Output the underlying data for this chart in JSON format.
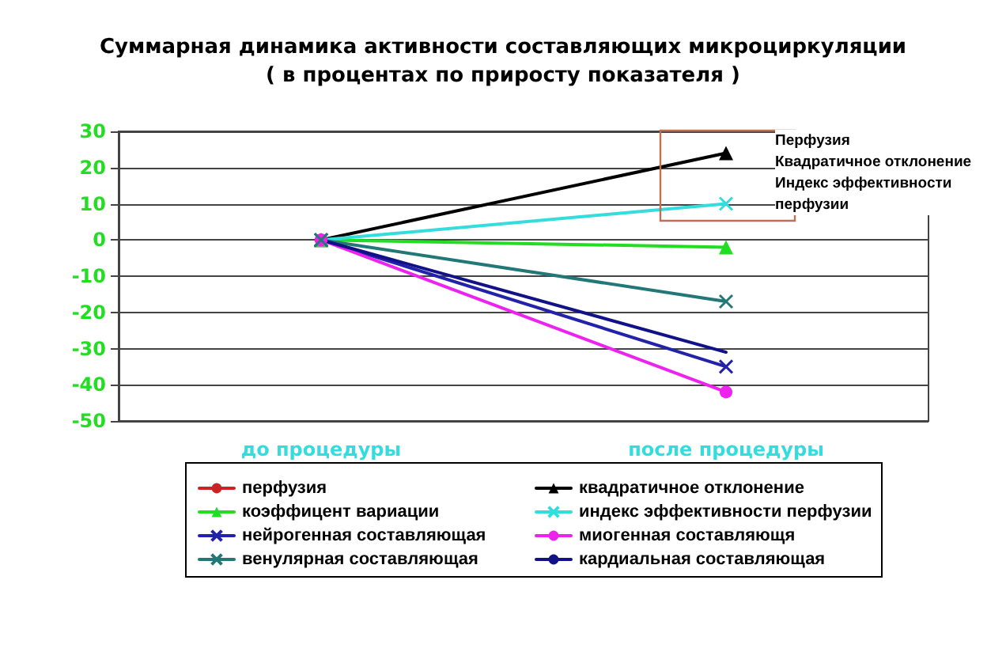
{
  "chart_data": {
    "type": "line",
    "title": "Суммарная динамика активности составляющих микроциркуляции\n( в процентах по приросту показателя )",
    "categories": [
      "до процедуры",
      "после процедуры"
    ],
    "ylim": [
      -50,
      30
    ],
    "yticks": [
      -50,
      -40,
      -30,
      -20,
      -10,
      0,
      10,
      20,
      30
    ],
    "grid": "y",
    "legend": "bottom",
    "line_style": "solid",
    "annotations": [
      "Перфузия\nКвадратичное отклонение\nИндекс эффективности\nперфузии"
    ],
    "series": [
      {
        "name": "перфузия",
        "color": "#cc2222",
        "marker": "circle",
        "values": [
          0,
          null
        ]
      },
      {
        "name": "квадратичное отклонение",
        "color": "#000000",
        "marker": "triangle",
        "values": [
          0,
          24
        ]
      },
      {
        "name": "коэффицент вариации",
        "color": "#22dd22",
        "marker": "triangle",
        "values": [
          0,
          -2
        ]
      },
      {
        "name": "индекс эффективности перфузии",
        "color": "#33dddd",
        "marker": "cross",
        "values": [
          0,
          10
        ]
      },
      {
        "name": "нейрогенная составляющая",
        "color": "#2222aa",
        "marker": "cross",
        "values": [
          0,
          -35
        ]
      },
      {
        "name": "миогенная составляющя",
        "color": "#ee22ee",
        "marker": "circle",
        "values": [
          0,
          -42
        ]
      },
      {
        "name": "венулярная составляющая",
        "color": "#227777",
        "marker": "cross",
        "values": [
          0,
          -17
        ]
      },
      {
        "name": "кардиальная составляющая",
        "color": "#111188",
        "marker": "none",
        "values": [
          0,
          -31
        ]
      }
    ]
  }
}
